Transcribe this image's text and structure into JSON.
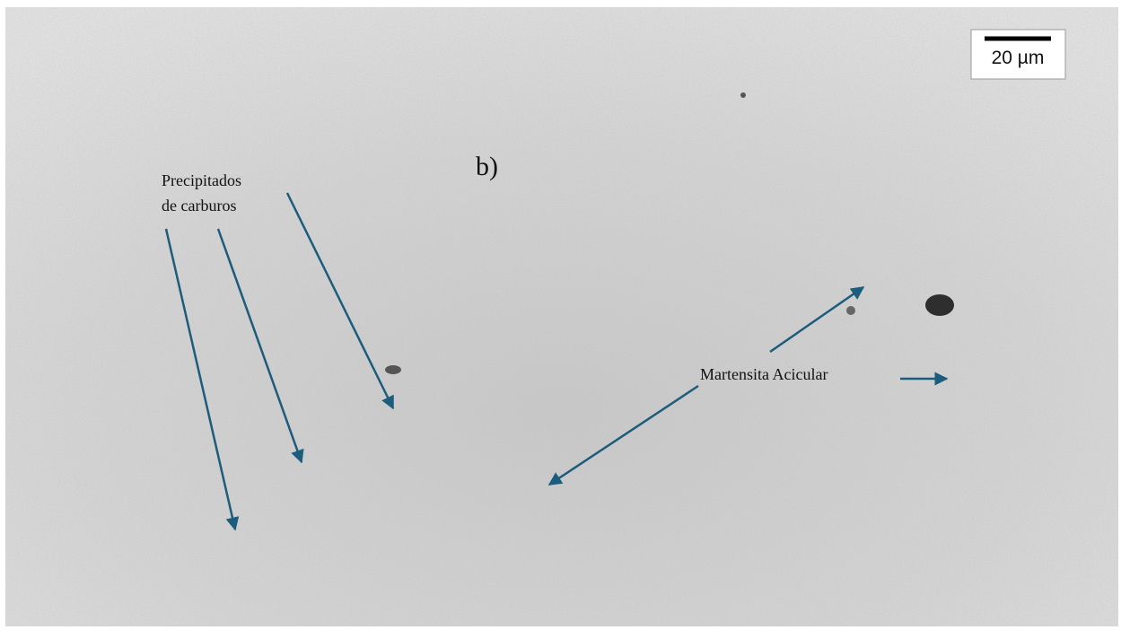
{
  "panel_label": "b)",
  "scale_bar": {
    "label": "20 µm"
  },
  "annotations": [
    {
      "lines": [
        "Precipitados",
        "de carburos"
      ]
    },
    {
      "lines": [
        "Martensita Acicular"
      ]
    }
  ]
}
